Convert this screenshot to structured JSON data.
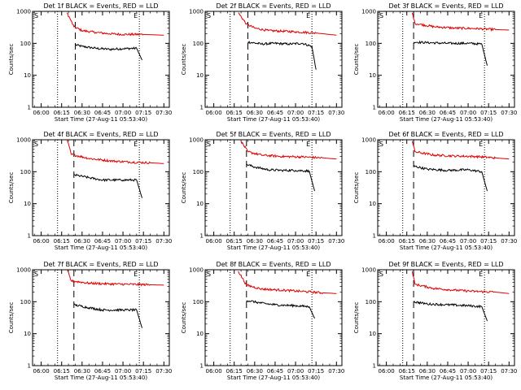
{
  "figure": {
    "colors": {
      "events": "#000000",
      "lld": "#e00000",
      "axis": "#000000"
    }
  },
  "chart_data": [
    {
      "type": "line",
      "title": "Det 1f BLACK = Events, RED = LLD",
      "xlabel": "Start Time (27-Aug-11 05:53:40)",
      "ylabel": "Counts/sec",
      "yscale": "log",
      "ylim": [
        1,
        1000
      ],
      "y_ticks": [
        "1",
        "10",
        "100",
        "1000"
      ],
      "xlim": [
        "05:53:40",
        "07:34:00"
      ],
      "x_ticks": [
        "06:00",
        "06:15",
        "06:30",
        "06:45",
        "07:00",
        "07:15",
        "07:30"
      ],
      "markers": {
        "dotted_start": "06:12",
        "dashed_lld": "06:25",
        "dotted_end": "07:12",
        "corner_labels": [
          "S",
          "E"
        ]
      },
      "series": [
        {
          "name": "Events",
          "points": [
            [
              "06:25",
              90
            ],
            [
              "06:30",
              80
            ],
            [
              "06:40",
              70
            ],
            [
              "06:50",
              65
            ],
            [
              "07:00",
              68
            ],
            [
              "07:10",
              70
            ],
            [
              "07:14",
              30
            ]
          ]
        },
        {
          "name": "LLD",
          "points": [
            [
              "06:19",
              900
            ],
            [
              "06:24",
              330
            ],
            [
              "06:30",
              250
            ],
            [
              "06:40",
              220
            ],
            [
              "06:50",
              200
            ],
            [
              "07:00",
              190
            ],
            [
              "07:15",
              190
            ],
            [
              "07:30",
              180
            ]
          ]
        }
      ]
    },
    {
      "type": "line",
      "title": "Det 2f BLACK = Events, RED = LLD",
      "xlabel": "Start Time (27-Aug-11 05:53:40)",
      "ylabel": "Counts/sec",
      "yscale": "log",
      "ylim": [
        1,
        1000
      ],
      "y_ticks": [
        "1",
        "10",
        "100",
        "1000"
      ],
      "xlim": [
        "05:53:40",
        "07:34:00"
      ],
      "x_ticks": [
        "06:00",
        "06:15",
        "06:30",
        "06:45",
        "07:00",
        "07:15",
        "07:30"
      ],
      "markers": {
        "dotted_start": "06:12",
        "dashed_lld": "06:25",
        "dotted_end": "07:12",
        "corner_labels": [
          "S",
          "E"
        ]
      },
      "series": [
        {
          "name": "Events",
          "points": [
            [
              "06:25",
              110
            ],
            [
              "06:35",
              95
            ],
            [
              "06:45",
              100
            ],
            [
              "06:55",
              95
            ],
            [
              "07:05",
              100
            ],
            [
              "07:12",
              80
            ],
            [
              "07:15",
              15
            ]
          ]
        },
        {
          "name": "LLD",
          "points": [
            [
              "06:18",
              900
            ],
            [
              "06:24",
              400
            ],
            [
              "06:30",
              300
            ],
            [
              "06:40",
              250
            ],
            [
              "06:50",
              240
            ],
            [
              "07:00",
              230
            ],
            [
              "07:15",
              210
            ],
            [
              "07:30",
              180
            ]
          ]
        }
      ]
    },
    {
      "type": "line",
      "title": "Det 3f BLACK = Events, RED = LLD",
      "xlabel": "Start Time (27-Aug-11 05:53:40)",
      "ylabel": "Counts/sec",
      "yscale": "log",
      "ylim": [
        1,
        1000
      ],
      "y_ticks": [
        "1",
        "10",
        "100",
        "1000"
      ],
      "xlim": [
        "05:53:40",
        "07:34:00"
      ],
      "x_ticks": [
        "06:00",
        "06:15",
        "06:30",
        "06:45",
        "07:00",
        "07:15",
        "07:30"
      ],
      "markers": {
        "dotted_start": "06:12",
        "dashed_lld": "06:20",
        "dotted_end": "07:12",
        "corner_labels": [
          "S",
          "E"
        ]
      },
      "series": [
        {
          "name": "Events",
          "points": [
            [
              "06:20",
              110
            ],
            [
              "06:30",
              105
            ],
            [
              "06:45",
              100
            ],
            [
              "07:00",
              100
            ],
            [
              "07:10",
              95
            ],
            [
              "07:14",
              20
            ]
          ]
        },
        {
          "name": "LLD",
          "points": [
            [
              "06:19",
              900
            ],
            [
              "06:21",
              420
            ],
            [
              "06:35",
              330
            ],
            [
              "06:50",
              300
            ],
            [
              "07:05",
              290
            ],
            [
              "07:20",
              270
            ],
            [
              "07:30",
              260
            ]
          ]
        }
      ]
    },
    {
      "type": "line",
      "title": "Det 4f BLACK = Events, RED = LLD",
      "xlabel": "Start Time (27-Aug-11 05:53:40)",
      "ylabel": "Counts/sec",
      "yscale": "log",
      "ylim": [
        1,
        1000
      ],
      "y_ticks": [
        "1",
        "10",
        "100",
        "1000"
      ],
      "xlim": [
        "05:53:40",
        "07:34:00"
      ],
      "x_ticks": [
        "06:00",
        "06:15",
        "06:30",
        "06:45",
        "07:00",
        "07:15",
        "07:30"
      ],
      "markers": {
        "dotted_start": "06:12",
        "dashed_lld": "06:24",
        "dotted_end": "07:12",
        "corner_labels": [
          "S",
          "E"
        ]
      },
      "series": [
        {
          "name": "Events",
          "points": [
            [
              "06:24",
              80
            ],
            [
              "06:35",
              65
            ],
            [
              "06:45",
              55
            ],
            [
              "07:00",
              55
            ],
            [
              "07:10",
              55
            ],
            [
              "07:14",
              15
            ]
          ]
        },
        {
          "name": "LLD",
          "points": [
            [
              "06:19",
              1000
            ],
            [
              "06:22",
              350
            ],
            [
              "06:35",
              260
            ],
            [
              "06:50",
              220
            ],
            [
              "07:05",
              200
            ],
            [
              "07:20",
              190
            ],
            [
              "07:30",
              180
            ]
          ]
        }
      ]
    },
    {
      "type": "line",
      "title": "Det 5f BLACK = Events, RED = LLD",
      "xlabel": "Start Time (27-Aug-11 05:53:40)",
      "ylabel": "Counts/sec",
      "yscale": "log",
      "ylim": [
        1,
        1000
      ],
      "y_ticks": [
        "1",
        "10",
        "100",
        "1000"
      ],
      "xlim": [
        "05:53:40",
        "07:34:00"
      ],
      "x_ticks": [
        "06:00",
        "06:15",
        "06:30",
        "06:45",
        "07:00",
        "07:15",
        "07:30"
      ],
      "markers": {
        "dotted_start": "06:12",
        "dashed_lld": "06:24",
        "dotted_end": "07:12",
        "corner_labels": [
          "S",
          "E"
        ]
      },
      "series": [
        {
          "name": "Events",
          "points": [
            [
              "06:24",
              170
            ],
            [
              "06:30",
              140
            ],
            [
              "06:40",
              115
            ],
            [
              "06:50",
              110
            ],
            [
              "07:00",
              110
            ],
            [
              "07:10",
              105
            ],
            [
              "07:14",
              25
            ]
          ]
        },
        {
          "name": "LLD",
          "points": [
            [
              "06:20",
              900
            ],
            [
              "06:25",
              420
            ],
            [
              "06:35",
              330
            ],
            [
              "06:50",
              300
            ],
            [
              "07:05",
              290
            ],
            [
              "07:20",
              270
            ],
            [
              "07:30",
              250
            ]
          ]
        }
      ]
    },
    {
      "type": "line",
      "title": "Det 6f BLACK = Events, RED = LLD",
      "xlabel": "Start Time (27-Aug-11 05:53:40)",
      "ylabel": "Counts/sec",
      "yscale": "log",
      "ylim": [
        1,
        1000
      ],
      "y_ticks": [
        "1",
        "10",
        "100",
        "1000"
      ],
      "xlim": [
        "05:53:40",
        "07:34:00"
      ],
      "x_ticks": [
        "06:00",
        "06:15",
        "06:30",
        "06:45",
        "07:00",
        "07:15",
        "07:30"
      ],
      "markers": {
        "dotted_start": "06:12",
        "dashed_lld": "06:20",
        "dotted_end": "07:12",
        "corner_labels": [
          "S",
          "E"
        ]
      },
      "series": [
        {
          "name": "Events",
          "points": [
            [
              "06:20",
              150
            ],
            [
              "06:30",
              120
            ],
            [
              "06:45",
              110
            ],
            [
              "07:00",
              115
            ],
            [
              "07:10",
              100
            ],
            [
              "07:14",
              25
            ]
          ]
        },
        {
          "name": "LLD",
          "points": [
            [
              "06:19",
              900
            ],
            [
              "06:21",
              420
            ],
            [
              "06:35",
              330
            ],
            [
              "06:50",
              310
            ],
            [
              "07:05",
              300
            ],
            [
              "07:20",
              270
            ],
            [
              "07:30",
              250
            ]
          ]
        }
      ]
    },
    {
      "type": "line",
      "title": "Det 7f BLACK = Events, RED = LLD",
      "xlabel": "Start Time (27-Aug-11 05:53:40)",
      "ylabel": "Counts/sec",
      "yscale": "log",
      "ylim": [
        1,
        1000
      ],
      "y_ticks": [
        "1",
        "10",
        "100",
        "1000"
      ],
      "xlim": [
        "05:53:40",
        "07:34:00"
      ],
      "x_ticks": [
        "06:00",
        "06:15",
        "06:30",
        "06:45",
        "07:00",
        "07:15",
        "07:30"
      ],
      "markers": {
        "dotted_start": "06:12",
        "dashed_lld": "06:24",
        "dotted_end": "07:12",
        "corner_labels": [
          "S",
          "E"
        ]
      },
      "series": [
        {
          "name": "Events",
          "points": [
            [
              "06:24",
              80
            ],
            [
              "06:35",
              65
            ],
            [
              "06:45",
              55
            ],
            [
              "07:00",
              55
            ],
            [
              "07:10",
              55
            ],
            [
              "07:14",
              15
            ]
          ]
        },
        {
          "name": "LLD",
          "points": [
            [
              "06:19",
              1000
            ],
            [
              "06:22",
              450
            ],
            [
              "06:35",
              380
            ],
            [
              "06:50",
              360
            ],
            [
              "07:05",
              350
            ],
            [
              "07:20",
              340
            ],
            [
              "07:30",
              330
            ]
          ]
        }
      ]
    },
    {
      "type": "line",
      "title": "Det 8f BLACK = Events, RED = LLD",
      "xlabel": "Start Time (27-Aug-11 05:53:40)",
      "ylabel": "Counts/sec",
      "yscale": "log",
      "ylim": [
        1,
        1000
      ],
      "y_ticks": [
        "1",
        "10",
        "100",
        "1000"
      ],
      "xlim": [
        "05:53:40",
        "07:34:00"
      ],
      "x_ticks": [
        "06:00",
        "06:15",
        "06:30",
        "06:45",
        "07:00",
        "07:15",
        "07:30"
      ],
      "markers": {
        "dotted_start": "06:12",
        "dashed_lld": "06:24",
        "dotted_end": "07:12",
        "corner_labels": [
          "S",
          "E"
        ]
      },
      "series": [
        {
          "name": "Events",
          "points": [
            [
              "06:24",
              110
            ],
            [
              "06:35",
              90
            ],
            [
              "06:45",
              80
            ],
            [
              "07:00",
              75
            ],
            [
              "07:10",
              70
            ],
            [
              "07:14",
              30
            ]
          ]
        },
        {
          "name": "LLD",
          "points": [
            [
              "06:18",
              900
            ],
            [
              "06:24",
              330
            ],
            [
              "06:35",
              250
            ],
            [
              "06:50",
              230
            ],
            [
              "07:05",
              210
            ],
            [
              "07:20",
              190
            ],
            [
              "07:30",
              180
            ]
          ]
        }
      ]
    },
    {
      "type": "line",
      "title": "Det 9f BLACK = Events, RED = LLD",
      "xlabel": "Start Time (27-Aug-11 05:53:40)",
      "ylabel": "Counts/sec",
      "yscale": "log",
      "ylim": [
        1,
        1000
      ],
      "y_ticks": [
        "1",
        "10",
        "100",
        "1000"
      ],
      "xlim": [
        "05:53:40",
        "07:34:00"
      ],
      "x_ticks": [
        "06:00",
        "06:15",
        "06:30",
        "06:45",
        "07:00",
        "07:15",
        "07:30"
      ],
      "markers": {
        "dotted_start": "06:12",
        "dashed_lld": "06:20",
        "dotted_end": "07:12",
        "corner_labels": [
          "S",
          "E"
        ]
      },
      "series": [
        {
          "name": "Events",
          "points": [
            [
              "06:20",
              100
            ],
            [
              "06:30",
              85
            ],
            [
              "06:45",
              80
            ],
            [
              "07:00",
              75
            ],
            [
              "07:10",
              70
            ],
            [
              "07:14",
              25
            ]
          ]
        },
        {
          "name": "LLD",
          "points": [
            [
              "06:19",
              900
            ],
            [
              "06:21",
              350
            ],
            [
              "06:35",
              260
            ],
            [
              "06:50",
              230
            ],
            [
              "07:05",
              210
            ],
            [
              "07:20",
              200
            ],
            [
              "07:30",
              180
            ]
          ]
        }
      ]
    }
  ]
}
